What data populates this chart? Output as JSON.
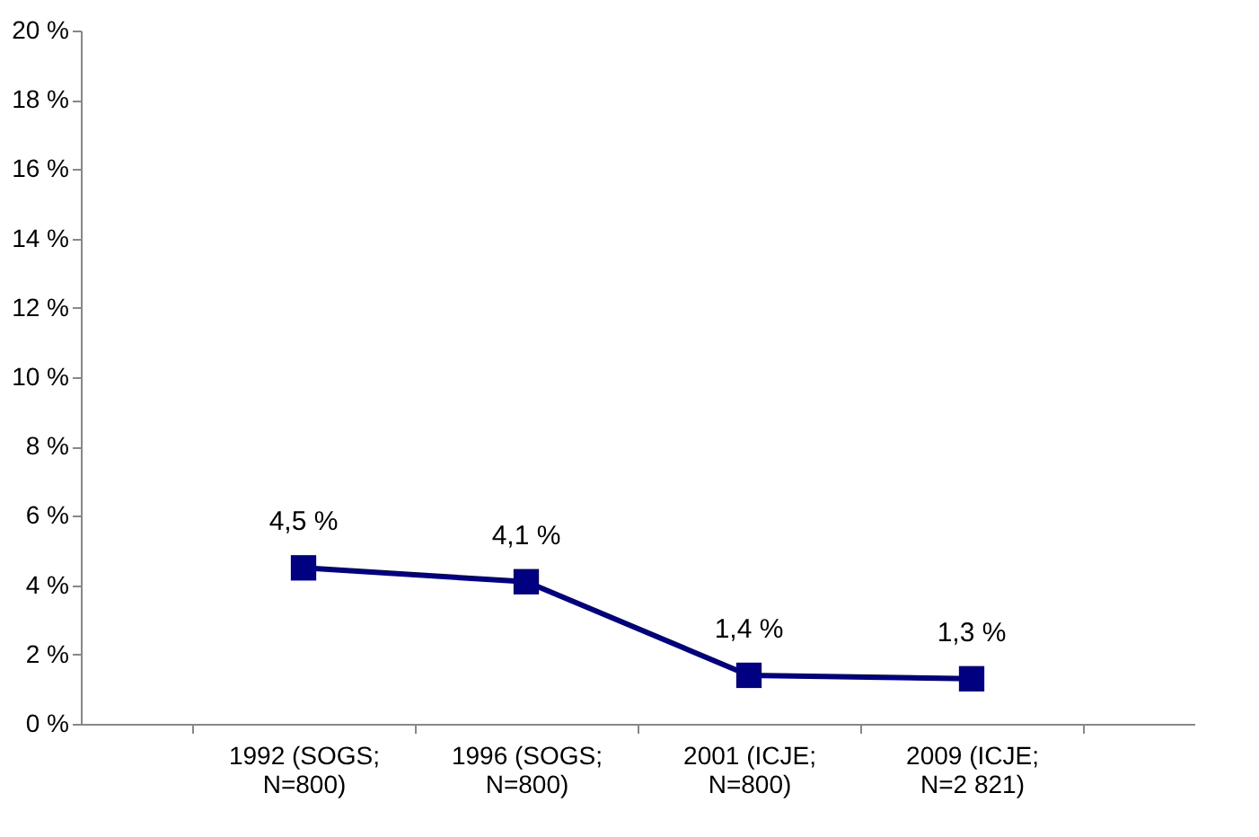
{
  "chart_data": {
    "type": "line",
    "categories": [
      "1992 (SOGS;\nN=800)",
      "1996 (SOGS;\nN=800)",
      "2001 (ICJE;\nN=800)",
      "2009 (ICJE;\nN=2 821)"
    ],
    "series": [
      {
        "color": "#000080",
        "values": [
          4.5,
          4.1,
          1.4,
          1.3
        ],
        "value_labels": [
          "4,5 %",
          "4,1 %",
          "1,4 %",
          "1,3 %"
        ]
      }
    ],
    "ylim": [
      0,
      20
    ],
    "yticks": [
      {
        "value": 0,
        "label": "0 %"
      },
      {
        "value": 2,
        "label": "2 %"
      },
      {
        "value": 4,
        "label": "4 %"
      },
      {
        "value": 6,
        "label": "6 %"
      },
      {
        "value": 8,
        "label": "8 %"
      },
      {
        "value": 10,
        "label": "10 %"
      },
      {
        "value": 12,
        "label": "12 %"
      },
      {
        "value": 14,
        "label": "14 %"
      },
      {
        "value": 16,
        "label": "16 %"
      },
      {
        "value": 18,
        "label": "18 %"
      },
      {
        "value": 20,
        "label": "20 %"
      }
    ],
    "grid": false,
    "legend": false,
    "marker": "square",
    "line_style": "solid"
  }
}
